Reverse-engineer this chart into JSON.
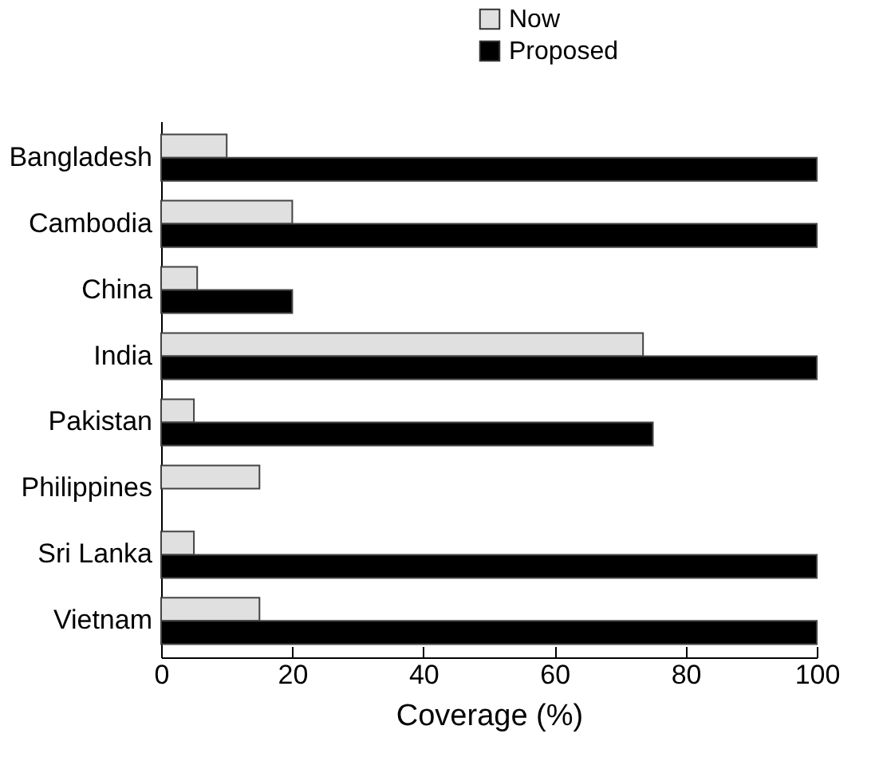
{
  "chart_data": {
    "type": "bar",
    "orientation": "horizontal",
    "xlabel": "Coverage (%)",
    "categories": [
      "Bangladesh",
      "Cambodia",
      "China",
      "India",
      "Pakistan",
      "Philippines",
      "Sri Lanka",
      "Vietnam"
    ],
    "series": [
      {
        "name": "Now",
        "color": "#e0e0e0",
        "values": [
          10,
          20,
          5.5,
          73.5,
          5,
          15,
          5,
          15
        ]
      },
      {
        "name": "Proposed",
        "color": "#000000",
        "values": [
          100,
          100,
          20,
          100,
          75,
          null,
          100,
          100
        ]
      }
    ],
    "xlim": [
      0,
      100
    ],
    "xticks": [
      0,
      20,
      40,
      60,
      80,
      100
    ],
    "legend": "top",
    "grid": false
  }
}
